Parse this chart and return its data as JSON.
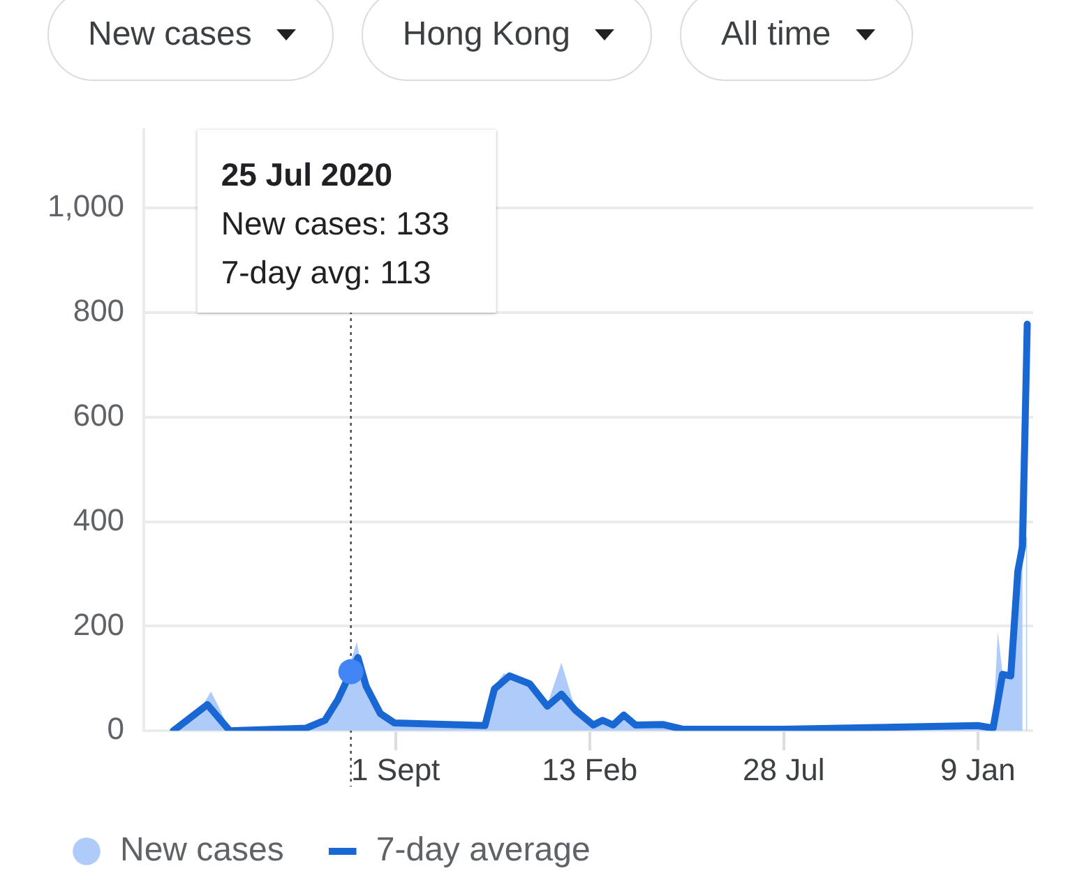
{
  "chart_data": {
    "type": "line",
    "annotations": [
      "New cases",
      "Hong Kong",
      "All time",
      "25 Jul 2020\nNew cases: 133\n7-day avg: 113"
    ],
    "xlim": [
      "2020-01-31",
      "2022-02-25"
    ],
    "xticks": [
      {
        "value": "2020-09-01",
        "label": "1 Sept"
      },
      {
        "value": "2021-02-13",
        "label": "13 Feb"
      },
      {
        "value": "2021-07-28",
        "label": "28 Jul"
      },
      {
        "value": "2022-01-09",
        "label": "9 Jan"
      }
    ],
    "ylim": [
      0,
      1150
    ],
    "yticks": [
      0,
      200,
      400,
      600,
      800,
      {
        "value": 1000,
        "label": "1,000"
      }
    ],
    "grid": "y",
    "legend": "bottom left",
    "marker": "none",
    "line_style": "solid",
    "ref_lines": [
      {
        "axis": "x",
        "value": "2020-07-25",
        "label": null,
        "line_style": "dotted",
        "color": "#444444"
      }
    ],
    "series": [
      {
        "name": "New cases",
        "type": "area",
        "color": "#aecbfa",
        "x": [
          "2020-02-25",
          "2020-03-20",
          "2020-03-28",
          "2020-04-05",
          "2020-04-13",
          "2020-06-17",
          "2020-07-03",
          "2020-07-14",
          "2020-07-25",
          "2020-07-30",
          "2020-08-07",
          "2020-08-19",
          "2020-08-31",
          "2020-11-16",
          "2020-11-24",
          "2020-12-02",
          "2020-12-07",
          "2020-12-24",
          "2021-01-08",
          "2021-01-20",
          "2021-02-01",
          "2021-02-16",
          "2021-02-24",
          "2021-03-05",
          "2021-03-14",
          "2021-03-24",
          "2021-04-16",
          "2021-05-03",
          "2021-07-28",
          "2021-11-24",
          "2022-01-09",
          "2022-01-22",
          "2022-01-26",
          "2022-01-30",
          "2022-02-06",
          "2022-02-12",
          "2022-02-16",
          "2022-02-18",
          "2022-02-19",
          "2022-02-20"
        ],
        "values": [
          0,
          45,
          75,
          40,
          0,
          5,
          25,
          70,
          133,
          170,
          80,
          30,
          12,
          10,
          85,
          110,
          105,
          95,
          50,
          130,
          40,
          12,
          25,
          12,
          35,
          12,
          12,
          3,
          3,
          8,
          10,
          8,
          190,
          110,
          110,
          320,
          630,
          null,
          370,
          370
        ]
      },
      {
        "name": "7-day average",
        "type": "line",
        "color": "#1967d2",
        "x": [
          "2020-02-25",
          "2020-03-25",
          "2020-04-13",
          "2020-06-17",
          "2020-07-03",
          "2020-07-14",
          "2020-07-25",
          "2020-07-31",
          "2020-08-07",
          "2020-08-19",
          "2020-08-31",
          "2020-11-16",
          "2020-11-24",
          "2020-12-07",
          "2020-12-24",
          "2021-01-08",
          "2021-01-20",
          "2021-02-01",
          "2021-02-16",
          "2021-02-24",
          "2021-03-05",
          "2021-03-14",
          "2021-03-24",
          "2021-04-16",
          "2021-05-03",
          "2021-07-28",
          "2021-11-24",
          "2022-01-09",
          "2022-01-22",
          "2022-01-30",
          "2022-02-06",
          "2022-02-12",
          "2022-02-16",
          "2022-02-20"
        ],
        "values": [
          0,
          50,
          0,
          5,
          20,
          60,
          113,
          140,
          85,
          33,
          15,
          10,
          80,
          105,
          90,
          47,
          70,
          39,
          11,
          20,
          11,
          30,
          11,
          12,
          3,
          3,
          8,
          10,
          5,
          108,
          105,
          305,
          353,
          778
        ]
      }
    ]
  }
}
